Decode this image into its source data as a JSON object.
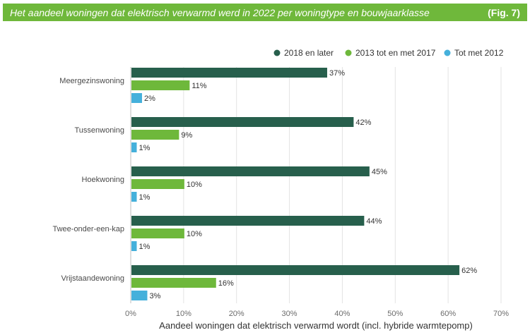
{
  "header": {
    "title": "Het aandeel woningen dat elektrisch verwarmd werd in 2022 per woningtype en bouwjaarklasse",
    "fig_label": "(Fig. 7)",
    "background": "#6fb83b"
  },
  "chart_data": {
    "type": "bar",
    "orientation": "horizontal",
    "categories": [
      "Meergezinswoning",
      "Tussenwoning",
      "Hoekwoning",
      "Twee-onder-een-kap",
      "Vrijstaandewoning"
    ],
    "series": [
      {
        "name": "2018 en later",
        "color": "#275f4c",
        "values": [
          37,
          42,
          45,
          44,
          62
        ],
        "labels": [
          "37%",
          "42%",
          "45%",
          "44%",
          "62%"
        ]
      },
      {
        "name": "2013 tot en met 2017",
        "color": "#6eb83b",
        "values": [
          11,
          9,
          10,
          10,
          16
        ],
        "labels": [
          "11%",
          "9%",
          "10%",
          "10%",
          "16%"
        ]
      },
      {
        "name": "Tot met 2012",
        "color": "#45b0db",
        "values": [
          2,
          1,
          1,
          1,
          3
        ],
        "labels": [
          "2%",
          "1%",
          "1%",
          "1%",
          "3%"
        ]
      }
    ],
    "xlim": [
      0,
      70
    ],
    "xticks": [
      "0%",
      "10%",
      "20%",
      "30%",
      "40%",
      "50%",
      "60%",
      "70%"
    ],
    "xlabel": "Aandeel woningen dat elektrisch verwarmd wordt (incl. hybride warmtepomp)",
    "ylabel": "",
    "grid": true,
    "legend_position": "top-right"
  }
}
